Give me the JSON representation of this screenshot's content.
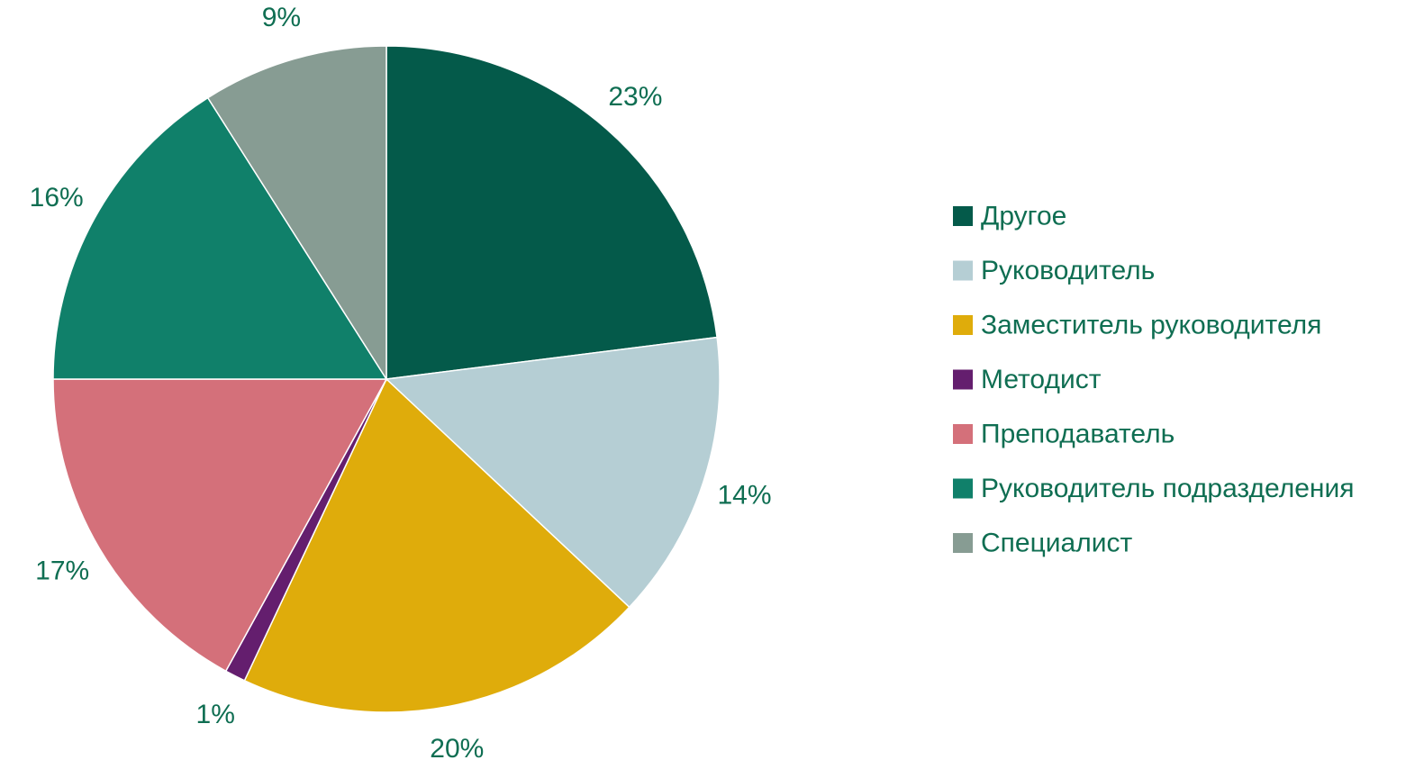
{
  "chart_data": {
    "type": "pie",
    "title": "",
    "categories": [
      "Другое",
      "Руководитель",
      "Заместитель руководителя",
      "Методист",
      "Преподаватель",
      "Руководитель подразделения",
      "Специалист"
    ],
    "values": [
      23,
      14,
      20,
      1,
      17,
      16,
      9
    ],
    "labels": [
      "23%",
      "14%",
      "20%",
      "1%",
      "17%",
      "16%",
      "9%"
    ],
    "colors": [
      "#045a4a",
      "#b5ced4",
      "#dfac0b",
      "#641e6e",
      "#d4707a",
      "#10806a",
      "#879c93"
    ],
    "start_angle_deg": 0,
    "direction": "clockwise",
    "legend_position": "right",
    "text_color": "#0f6e52"
  }
}
